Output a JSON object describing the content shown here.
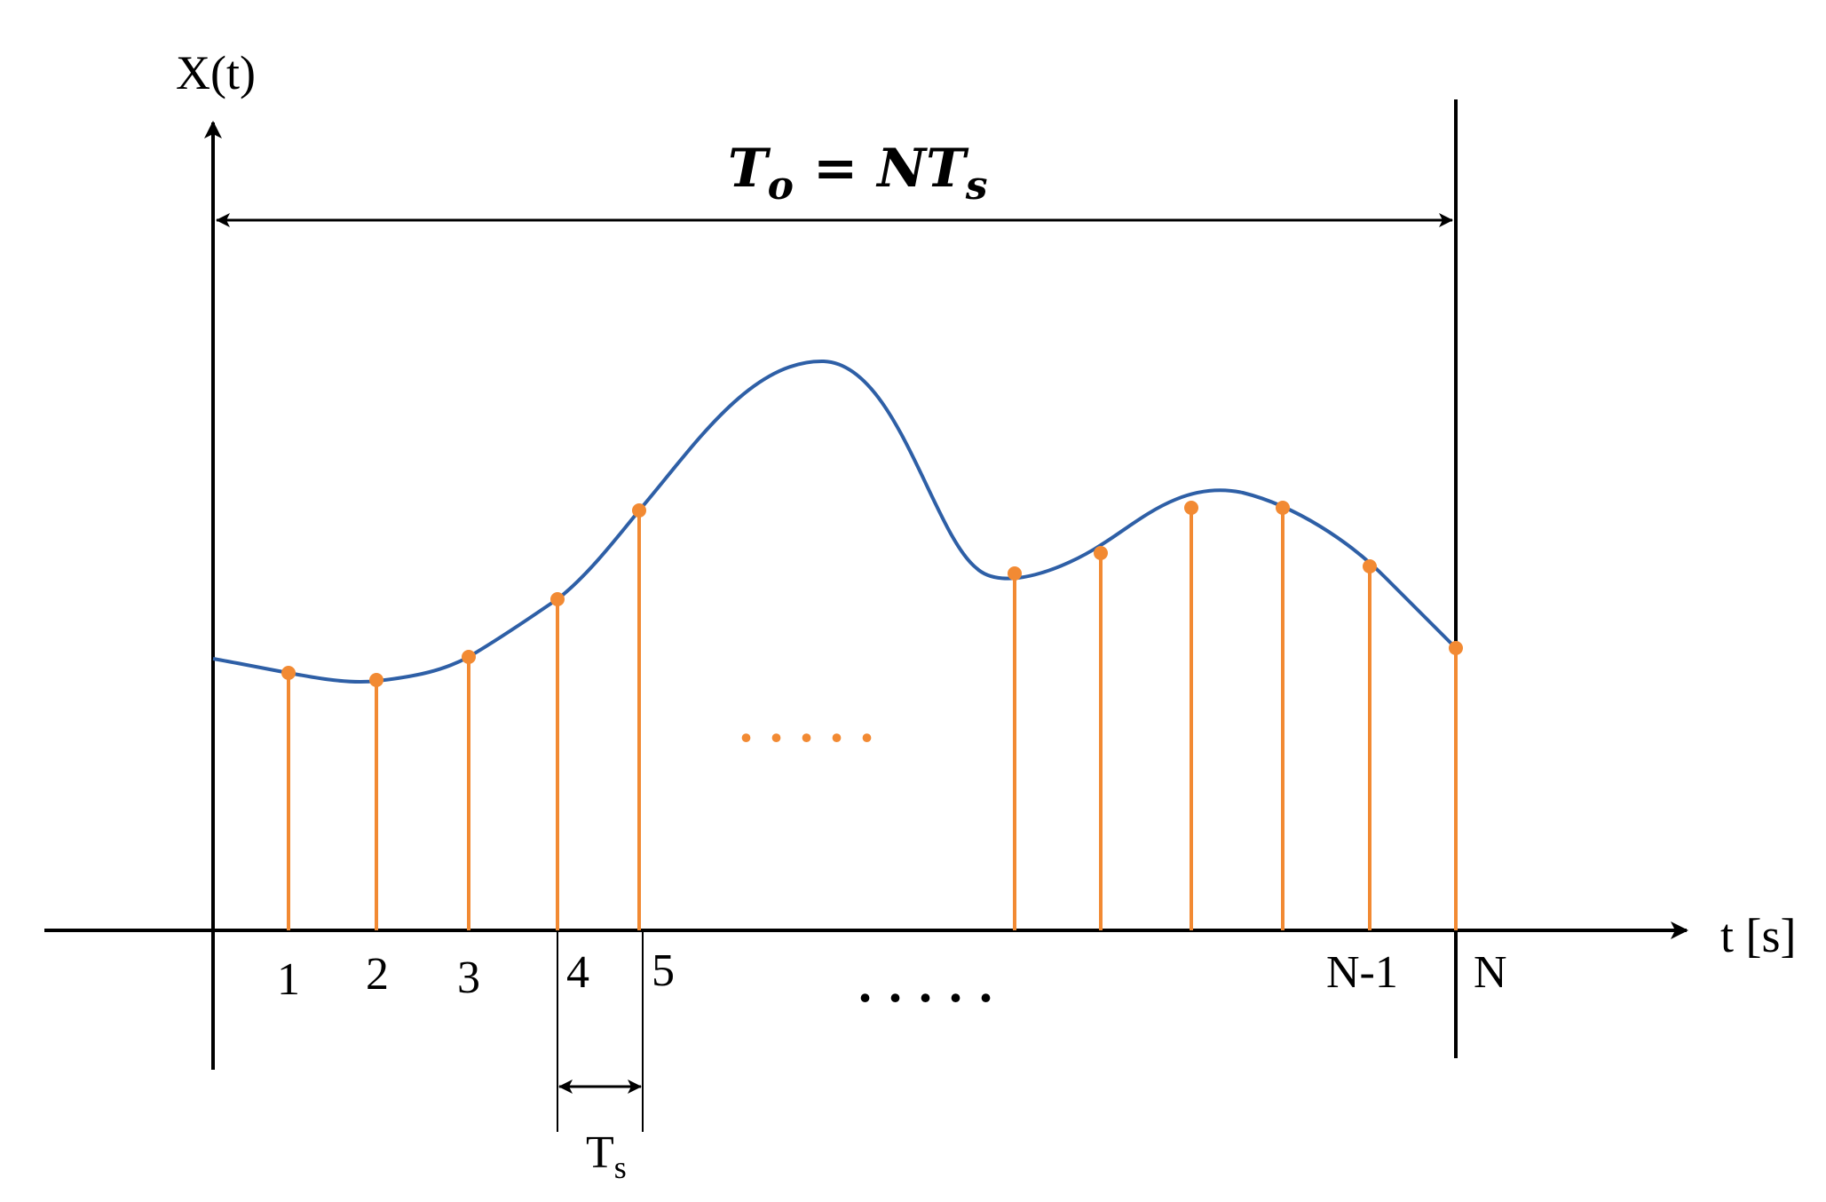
{
  "diagram": {
    "y_axis_label": "X(t)",
    "x_axis_label": "t [s]",
    "period_equation": {
      "lhs_symbol": "T",
      "lhs_subscript": "o",
      "equals": "=",
      "rhs_symbol": "NT",
      "rhs_subscript": "s"
    },
    "sample_labels": [
      "1",
      "2",
      "3",
      "4",
      "5",
      "N-1",
      "N"
    ],
    "ellipsis_axis": ". . . . .",
    "ellipsis_samples": ". . . . .",
    "sampling_interval_symbol": "T",
    "sampling_interval_subscript": "s",
    "colors": {
      "axis": "#000000",
      "signal_curve": "#2e5fa6",
      "sample_stem": "#f28a33",
      "sample_dot": "#f28a33",
      "text": "#000000"
    },
    "icons": {
      "axis_arrow": "arrowhead",
      "dimension_arrow": "double-headed-arrow"
    }
  }
}
